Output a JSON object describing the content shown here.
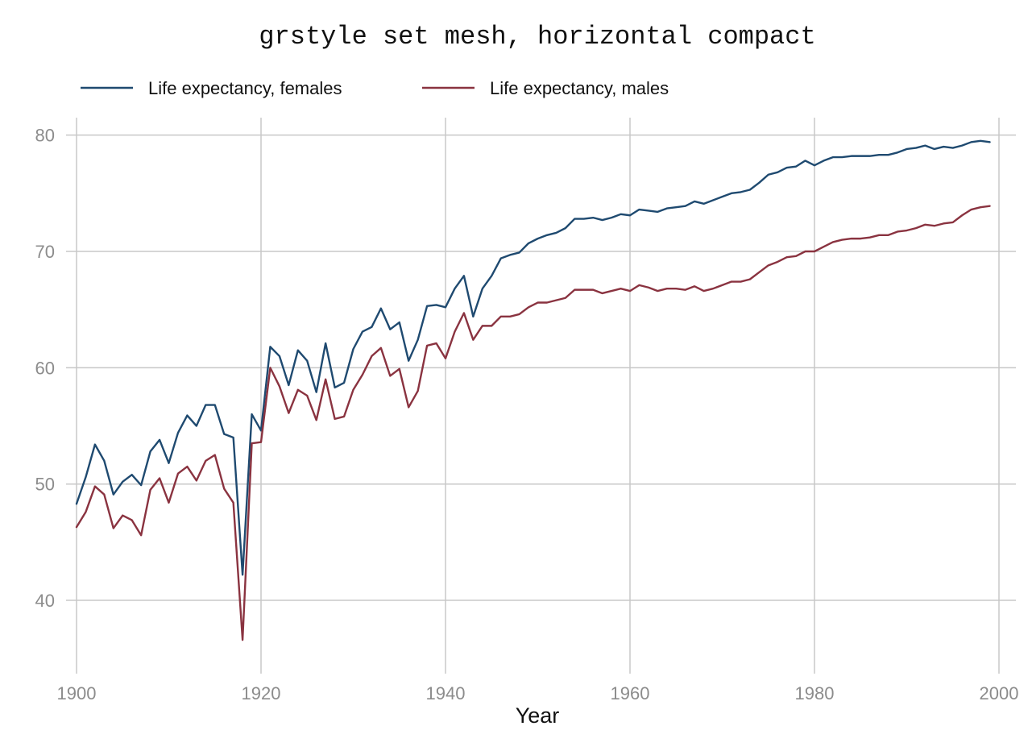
{
  "chart_data": {
    "type": "line",
    "title": "grstyle set mesh, horizontal compact",
    "xlabel": "Year",
    "ylabel": "",
    "xlim": [
      1900,
      2000
    ],
    "ylim": [
      35.5,
      81.5
    ],
    "xticks": [
      1900,
      1920,
      1940,
      1960,
      1980,
      2000
    ],
    "yticks": [
      40,
      50,
      60,
      70,
      80
    ],
    "grid": true,
    "legend_position": "top-left",
    "x": [
      1900,
      1901,
      1902,
      1903,
      1904,
      1905,
      1906,
      1907,
      1908,
      1909,
      1910,
      1911,
      1912,
      1913,
      1914,
      1915,
      1916,
      1917,
      1918,
      1919,
      1920,
      1921,
      1922,
      1923,
      1924,
      1925,
      1926,
      1927,
      1928,
      1929,
      1930,
      1931,
      1932,
      1933,
      1934,
      1935,
      1936,
      1937,
      1938,
      1939,
      1940,
      1941,
      1942,
      1943,
      1944,
      1945,
      1946,
      1947,
      1948,
      1949,
      1950,
      1951,
      1952,
      1953,
      1954,
      1955,
      1956,
      1957,
      1958,
      1959,
      1960,
      1961,
      1962,
      1963,
      1964,
      1965,
      1966,
      1967,
      1968,
      1969,
      1970,
      1971,
      1972,
      1973,
      1974,
      1975,
      1976,
      1977,
      1978,
      1979,
      1980,
      1981,
      1982,
      1983,
      1984,
      1985,
      1986,
      1987,
      1988,
      1989,
      1990,
      1991,
      1992,
      1993,
      1994,
      1995,
      1996,
      1997,
      1998,
      1999
    ],
    "series": [
      {
        "name": "Life expectancy, females",
        "color": "#1f4a70",
        "values": [
          48.3,
          50.6,
          53.4,
          52.0,
          49.1,
          50.2,
          50.8,
          49.9,
          52.8,
          53.8,
          51.8,
          54.4,
          55.9,
          55.0,
          56.8,
          56.8,
          54.3,
          54.0,
          42.2,
          56.0,
          54.6,
          61.8,
          61.0,
          58.5,
          61.5,
          60.6,
          57.9,
          62.1,
          58.3,
          58.7,
          61.6,
          63.1,
          63.5,
          65.1,
          63.3,
          63.9,
          60.6,
          62.4,
          65.3,
          65.4,
          65.2,
          66.8,
          67.9,
          64.4,
          66.8,
          67.9,
          69.4,
          69.7,
          69.9,
          70.7,
          71.1,
          71.4,
          71.6,
          72.0,
          72.8,
          72.8,
          72.9,
          72.7,
          72.9,
          73.2,
          73.1,
          73.6,
          73.5,
          73.4,
          73.7,
          73.8,
          73.9,
          74.3,
          74.1,
          74.4,
          74.7,
          75.0,
          75.1,
          75.3,
          75.9,
          76.6,
          76.8,
          77.2,
          77.3,
          77.8,
          77.4,
          77.8,
          78.1,
          78.1,
          78.2,
          78.2,
          78.2,
          78.3,
          78.3,
          78.5,
          78.8,
          78.9,
          79.1,
          78.8,
          79.0,
          78.9,
          79.1,
          79.4,
          79.5,
          79.4
        ]
      },
      {
        "name": "Life expectancy, males",
        "color": "#8a3340",
        "values": [
          46.3,
          47.6,
          49.8,
          49.1,
          46.2,
          47.3,
          46.9,
          45.6,
          49.5,
          50.5,
          48.4,
          50.9,
          51.5,
          50.3,
          52.0,
          52.5,
          49.6,
          48.4,
          36.6,
          53.5,
          53.6,
          60.0,
          58.4,
          56.1,
          58.1,
          57.6,
          55.5,
          59.0,
          55.6,
          55.8,
          58.1,
          59.4,
          61.0,
          61.7,
          59.3,
          59.9,
          56.6,
          58.0,
          61.9,
          62.1,
          60.8,
          63.1,
          64.7,
          62.4,
          63.6,
          63.6,
          64.4,
          64.4,
          64.6,
          65.2,
          65.6,
          65.6,
          65.8,
          66.0,
          66.7,
          66.7,
          66.7,
          66.4,
          66.6,
          66.8,
          66.6,
          67.1,
          66.9,
          66.6,
          66.8,
          66.8,
          66.7,
          67.0,
          66.6,
          66.8,
          67.1,
          67.4,
          67.4,
          67.6,
          68.2,
          68.8,
          69.1,
          69.5,
          69.6,
          70.0,
          70.0,
          70.4,
          70.8,
          71.0,
          71.1,
          71.1,
          71.2,
          71.4,
          71.4,
          71.7,
          71.8,
          72.0,
          72.3,
          72.2,
          72.4,
          72.5,
          73.1,
          73.6,
          73.8,
          73.9
        ]
      }
    ]
  }
}
